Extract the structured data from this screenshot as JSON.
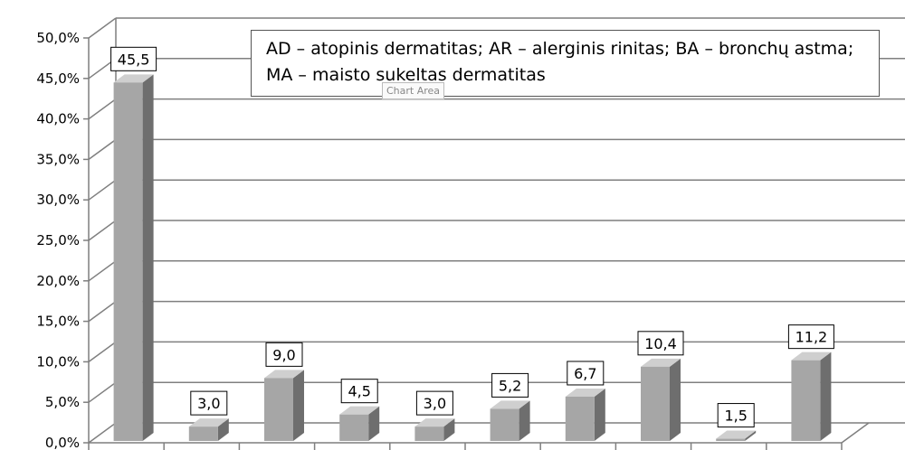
{
  "chart_data": {
    "type": "bar",
    "categories": [
      "",
      "",
      "",
      "",
      "",
      "",
      "",
      "",
      "",
      ""
    ],
    "values": [
      45.5,
      3.0,
      9.0,
      4.5,
      3.0,
      5.2,
      6.7,
      10.4,
      1.5,
      11.2
    ],
    "value_labels": [
      "45,5",
      "3,0",
      "9,0",
      "4,5",
      "3,0",
      "5,2",
      "6,7",
      "10,4",
      "1,5",
      "11,2"
    ],
    "y_ticks": [
      "0,0%",
      "5,0%",
      "10,0%",
      "15,0%",
      "20,0%",
      "25,0%",
      "30,0%",
      "35,0%",
      "40,0%",
      "45,0%",
      "50,0%"
    ],
    "ylim": [
      0,
      50
    ],
    "grid": true,
    "title": "",
    "xlabel": "",
    "ylabel": "",
    "annotation": "AD – atopinis dermatitas; AR – alerginis rinitas; BA – bronchų astma; MA – maisto sukeltas dermatitas",
    "colors": {
      "bar_front": "#a6a6a6",
      "bar_side": "#6e6e6e",
      "bar_top": "#cfcfcf",
      "grid": "#7f7f7f"
    }
  },
  "tooltip": "Chart Area"
}
